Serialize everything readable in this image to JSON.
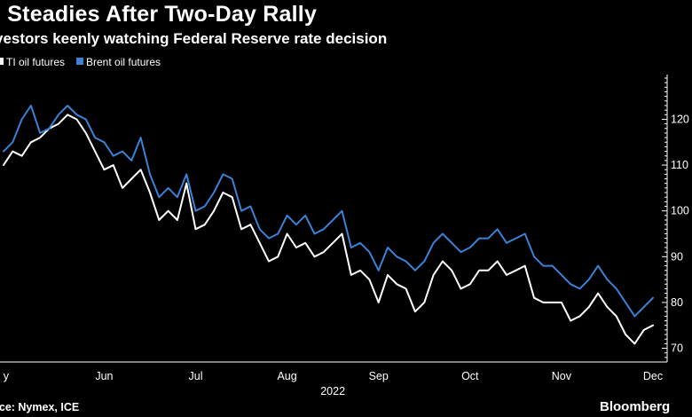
{
  "header": {
    "title": "l Steadies After Two-Day Rally",
    "subtitle": "vestors keenly watching Federal Reserve rate decision"
  },
  "footer": {
    "source": "rce: Nymex, ICE",
    "brand": "Bloomberg"
  },
  "colors": {
    "background": "#000000",
    "wti": "#ffffff",
    "brent": "#3b82d6",
    "axis": "#ffffff"
  },
  "chart_data": {
    "type": "line",
    "title": "l Steadies After Two-Day Rally",
    "subtitle": "vestors keenly watching Federal Reserve rate decision",
    "xlabel": "2022",
    "ylabel": "",
    "x_axis": {
      "tick_labels": [
        "y",
        "Jun",
        "Jul",
        "Aug",
        "Sep",
        "Oct",
        "Nov",
        "Dec"
      ],
      "tick_positions": [
        0,
        11,
        21,
        31,
        41,
        51,
        61,
        71
      ],
      "year_label": "2022",
      "year_position": 36
    },
    "y_axis": {
      "range": [
        67,
        129
      ],
      "ticks": [
        70,
        80,
        90,
        100,
        110,
        120
      ],
      "tick_labels": [
        "70",
        "80",
        "90",
        "100",
        "110",
        "120"
      ],
      "side": "right"
    },
    "grid": false,
    "legend": {
      "position": "top-left",
      "entries": [
        {
          "label": "TI oil futures",
          "series": "wti"
        },
        {
          "label": "Brent oil futures",
          "series": "brent"
        }
      ]
    },
    "series": [
      {
        "name": "TI oil futures",
        "key": "wti",
        "color": "#ffffff",
        "values": [
          110,
          113,
          112,
          115,
          116,
          118,
          119,
          121,
          120,
          117,
          113,
          109,
          110,
          105,
          107,
          109,
          104,
          98,
          100,
          98,
          106,
          96,
          97,
          100,
          104,
          103,
          96,
          97,
          93,
          89,
          90,
          95,
          92,
          93,
          90,
          91,
          93,
          95,
          86,
          87,
          85,
          80,
          86,
          84,
          83,
          78,
          80,
          86,
          89,
          87,
          83,
          84,
          87,
          87,
          89,
          86,
          87,
          88,
          81,
          80,
          80,
          80,
          76,
          77,
          79,
          82,
          79,
          77,
          73,
          71,
          74,
          75
        ]
      },
      {
        "name": "Brent oil futures",
        "key": "brent",
        "color": "#3b82d6",
        "values": [
          113,
          115,
          120,
          123,
          117,
          118,
          121,
          123,
          121,
          120,
          116,
          115,
          112,
          113,
          111,
          116,
          108,
          103,
          105,
          103,
          108,
          100,
          101,
          104,
          108,
          107,
          100,
          101,
          96,
          94,
          95,
          99,
          97,
          99,
          95,
          96,
          98,
          100,
          92,
          93,
          91,
          87,
          92,
          90,
          89,
          87,
          89,
          93,
          95,
          93,
          91,
          92,
          94,
          94,
          96,
          93,
          94,
          95,
          90,
          88,
          88,
          86,
          84,
          83,
          85,
          88,
          85,
          83,
          80,
          77,
          79,
          81
        ]
      }
    ]
  }
}
